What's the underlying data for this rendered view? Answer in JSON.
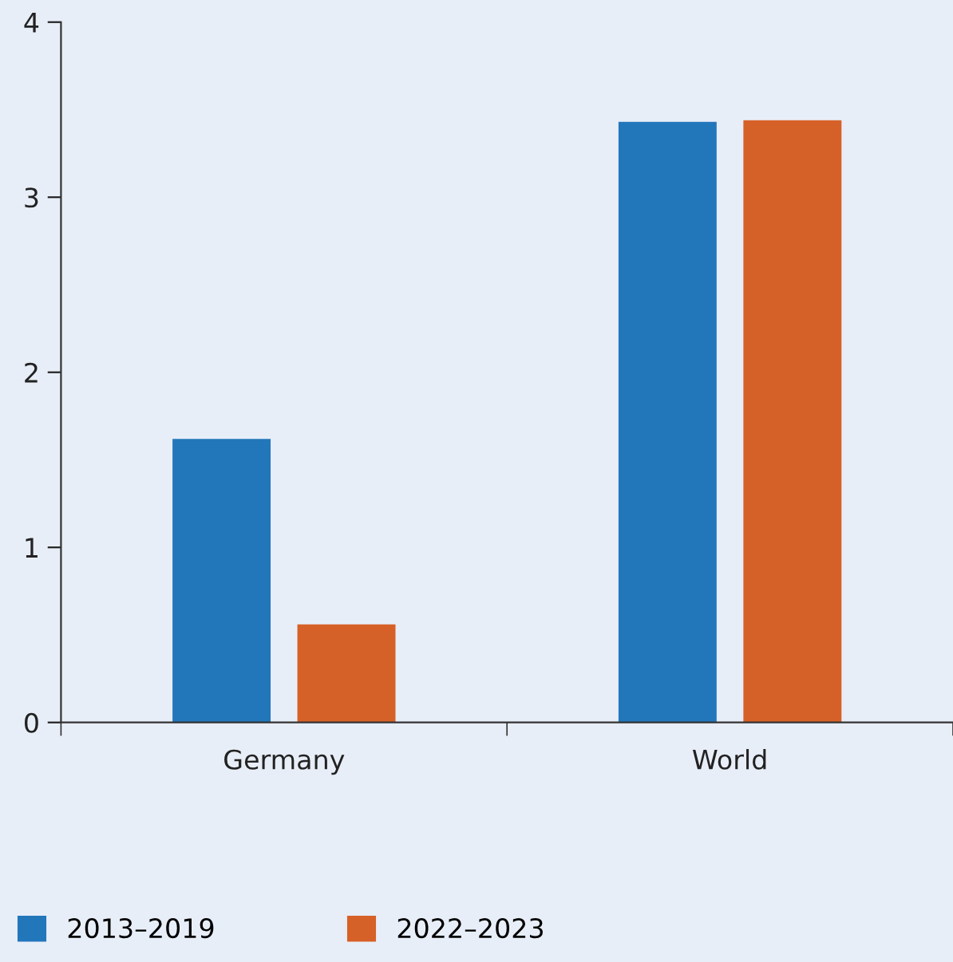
{
  "chart_data": {
    "type": "bar",
    "categories": [
      "Germany",
      "World"
    ],
    "series": [
      {
        "name": "2013–2019",
        "color": "#2277bb",
        "values": [
          1.62,
          3.43
        ]
      },
      {
        "name": "2022–2023",
        "color": "#d66128",
        "values": [
          0.56,
          3.44
        ]
      }
    ],
    "ylim": [
      0,
      4
    ],
    "yticks": [
      0,
      1,
      2,
      3,
      4
    ],
    "grid": false,
    "legend": "bottom left"
  }
}
